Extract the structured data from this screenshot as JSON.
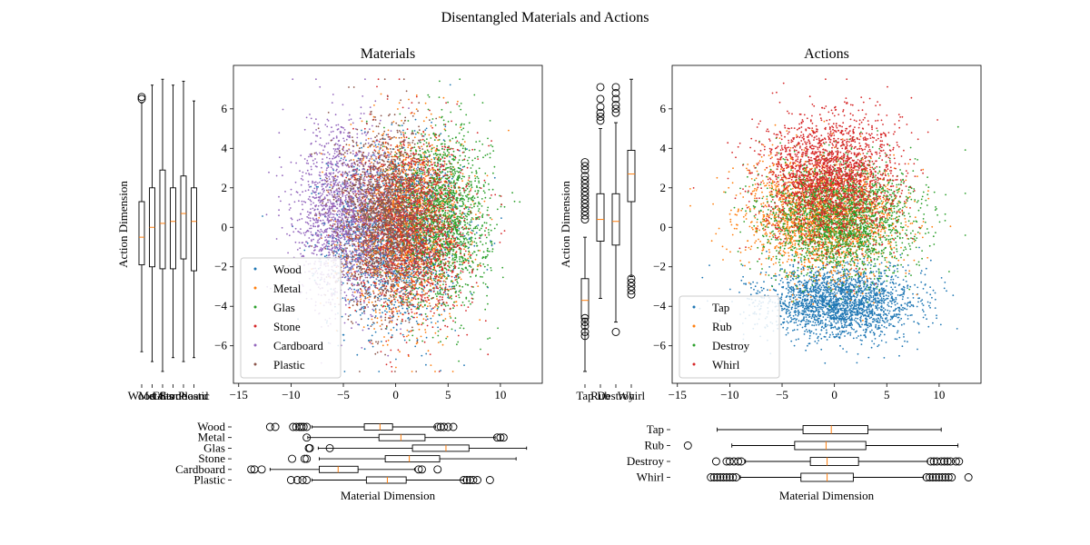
{
  "title": "Disentangled Materials and Actions",
  "colors": {
    "c0": "#1f77b4",
    "c1": "#ff7f0e",
    "c2": "#2ca02c",
    "c3": "#d62728",
    "c4": "#9467bd",
    "c5": "#8c564b",
    "median": "#ff7f0e",
    "axis": "#000000"
  },
  "chart_data": [
    {
      "id": "materials-scatter",
      "type": "scatter",
      "title": "Materials",
      "xlabel": "",
      "ylabel": "",
      "xlim": [
        -15.5,
        14
      ],
      "ylim": [
        -7.9,
        8.2
      ],
      "xticks": [
        -15,
        -10,
        -5,
        0,
        5,
        10
      ],
      "yticks": [
        -6,
        -4,
        -2,
        0,
        2,
        4,
        6
      ],
      "legend": "lower-left",
      "series": [
        {
          "name": "Wood",
          "color": "c0",
          "x_center": 0.0,
          "x_spread": 3.5,
          "y_center": -0.5,
          "y_spread": 2.5
        },
        {
          "name": "Metal",
          "color": "c1",
          "x_center": 1.0,
          "x_spread": 3.0,
          "y_center": 0.0,
          "y_spread": 2.5
        },
        {
          "name": "Glas",
          "color": "c2",
          "x_center": 4.5,
          "x_spread": 2.5,
          "y_center": 0.5,
          "y_spread": 2.5
        },
        {
          "name": "Stone",
          "color": "c3",
          "x_center": 1.5,
          "x_spread": 3.0,
          "y_center": 0.0,
          "y_spread": 2.5
        },
        {
          "name": "Cardboard",
          "color": "c4",
          "x_center": -5.0,
          "x_spread": 2.5,
          "y_center": 0.5,
          "y_spread": 2.5
        },
        {
          "name": "Plastic",
          "color": "c5",
          "x_center": -1.0,
          "x_spread": 2.5,
          "y_center": 0.5,
          "y_spread": 2.5
        }
      ]
    },
    {
      "id": "actions-scatter",
      "type": "scatter",
      "title": "Actions",
      "xlabel": "",
      "ylabel": "",
      "xlim": [
        -15.5,
        14
      ],
      "ylim": [
        -7.9,
        8.2
      ],
      "xticks": [
        -15,
        -10,
        -5,
        0,
        5,
        10
      ],
      "yticks": [
        -6,
        -4,
        -2,
        0,
        2,
        4,
        6
      ],
      "legend": "lower-left",
      "series": [
        {
          "name": "Tap",
          "color": "c0",
          "x_center": 0.5,
          "x_spread": 4.0,
          "y_center": -3.8,
          "y_spread": 1.0
        },
        {
          "name": "Rub",
          "color": "c1",
          "x_center": -1.0,
          "x_spread": 4.0,
          "y_center": 0.5,
          "y_spread": 1.6
        },
        {
          "name": "Destroy",
          "color": "c2",
          "x_center": 0.5,
          "x_spread": 4.0,
          "y_center": 0.5,
          "y_spread": 1.6
        },
        {
          "name": "Whirl",
          "color": "c3",
          "x_center": -0.5,
          "x_spread": 3.5,
          "y_center": 2.5,
          "y_spread": 1.8
        }
      ]
    },
    {
      "id": "materials-action-box",
      "type": "box",
      "orientation": "vertical",
      "ylabel": "Action Dimension",
      "ylim": [
        -7.9,
        8.2
      ],
      "categories": [
        "Wood",
        "Metal",
        "Glas",
        "Stone",
        "Cardboard",
        "Plastic"
      ],
      "boxes": [
        {
          "whislo": -6.3,
          "q1": -1.9,
          "med": -0.5,
          "q3": 1.3,
          "whishi": 6.3,
          "fliers": [
            6.5,
            6.6
          ]
        },
        {
          "whislo": -6.8,
          "q1": -2.0,
          "med": 0.0,
          "q3": 2.0,
          "whishi": 7.2,
          "fliers": []
        },
        {
          "whislo": -7.3,
          "q1": -2.1,
          "med": 0.2,
          "q3": 2.9,
          "whishi": 7.5,
          "fliers": []
        },
        {
          "whislo": -6.6,
          "q1": -2.1,
          "med": 0.3,
          "q3": 2.0,
          "whishi": 7.2,
          "fliers": []
        },
        {
          "whislo": -6.8,
          "q1": -1.6,
          "med": 0.7,
          "q3": 2.6,
          "whishi": 7.4,
          "fliers": []
        },
        {
          "whislo": -6.6,
          "q1": -2.2,
          "med": 0.3,
          "q3": 2.0,
          "whishi": 6.4,
          "fliers": []
        }
      ]
    },
    {
      "id": "actions-action-box",
      "type": "box",
      "orientation": "vertical",
      "ylabel": "Action Dimension",
      "ylim": [
        -7.9,
        8.2
      ],
      "categories": [
        "Tap",
        "Rub",
        "Destroy",
        "Whirl"
      ],
      "boxes": [
        {
          "whislo": -7.3,
          "q1": -4.6,
          "med": -3.7,
          "q3": -2.6,
          "whishi": -0.5,
          "fliers": [
            3.3,
            3.1,
            2.9,
            2.6,
            2.4,
            2.2,
            2.0,
            1.8,
            1.6,
            1.4,
            1.2,
            1.0,
            0.8,
            0.6,
            0.4,
            -4.6,
            -4.8,
            -5.0,
            -5.3,
            -5.5
          ]
        },
        {
          "whislo": -3.6,
          "q1": -0.7,
          "med": 0.4,
          "q3": 1.7,
          "whishi": 5.0,
          "fliers": [
            5.4,
            5.6,
            5.8,
            6.1,
            6.5,
            7.1
          ]
        },
        {
          "whislo": -4.8,
          "q1": -0.9,
          "med": 0.3,
          "q3": 1.7,
          "whishi": 5.3,
          "fliers": [
            5.8,
            6.0,
            6.2,
            6.5,
            6.8,
            7.1,
            -5.3
          ]
        },
        {
          "whislo": -2.5,
          "q1": 1.3,
          "med": 2.7,
          "q3": 3.9,
          "whishi": 7.5,
          "fliers": [
            -2.6,
            -2.8,
            -3.0,
            -3.2,
            -3.4
          ]
        }
      ]
    },
    {
      "id": "materials-material-box",
      "type": "box",
      "orientation": "horizontal",
      "xlabel": "Material Dimension",
      "xlim": [
        -15.5,
        14
      ],
      "categories": [
        "Wood",
        "Metal",
        "Glas",
        "Stone",
        "Cardboard",
        "Plastic"
      ],
      "boxes": [
        {
          "whislo": -8.0,
          "q1": -3.0,
          "med": -1.5,
          "q3": -0.3,
          "whishi": 3.8,
          "fliers": [
            -12.0,
            -11.5,
            -9.8,
            -9.5,
            -9.2,
            -9.0,
            -8.8,
            -8.5,
            4.0,
            4.3,
            4.6,
            5.0,
            5.5
          ]
        },
        {
          "whislo": -8.4,
          "q1": -1.6,
          "med": 0.5,
          "q3": 2.8,
          "whishi": 9.5,
          "fliers": [
            -8.5,
            9.7,
            10.0,
            10.3
          ]
        },
        {
          "whislo": -7.4,
          "q1": 1.6,
          "med": 4.8,
          "q3": 7.0,
          "whishi": 12.5,
          "fliers": [
            -8.3,
            -8.2,
            -6.3
          ]
        },
        {
          "whislo": -7.3,
          "q1": -1.0,
          "med": 1.3,
          "q3": 4.2,
          "whishi": 11.5,
          "fliers": [
            -9.9,
            -8.7,
            -8.5
          ]
        },
        {
          "whislo": -12.0,
          "q1": -7.3,
          "med": -5.5,
          "q3": -3.6,
          "whishi": 1.8,
          "fliers": [
            -13.8,
            -13.5,
            -12.8,
            2.2,
            2.5,
            4.0
          ]
        },
        {
          "whislo": -8.0,
          "q1": -2.8,
          "med": -0.8,
          "q3": 1.0,
          "whishi": 6.5,
          "fliers": [
            -10.0,
            -9.4,
            -8.9,
            -8.5,
            6.5,
            6.8,
            7.1,
            7.4,
            7.8,
            9.0
          ]
        }
      ]
    },
    {
      "id": "actions-material-box",
      "type": "box",
      "orientation": "horizontal",
      "xlabel": "Material Dimension",
      "xlim": [
        -15.5,
        14
      ],
      "categories": [
        "Tap",
        "Rub",
        "Destroy",
        "Whirl"
      ],
      "boxes": [
        {
          "whislo": -11.2,
          "q1": -3.0,
          "med": -0.3,
          "q3": 3.2,
          "whishi": 10.2,
          "fliers": []
        },
        {
          "whislo": -9.8,
          "q1": -3.8,
          "med": -0.8,
          "q3": 3.0,
          "whishi": 11.8,
          "fliers": [
            -14.0
          ]
        },
        {
          "whislo": -8.5,
          "q1": -2.3,
          "med": -0.7,
          "q3": 2.3,
          "whishi": 8.9,
          "fliers": [
            -11.3,
            -10.3,
            -10.0,
            -9.6,
            -9.2,
            -8.9,
            9.2,
            9.5,
            9.8,
            10.2,
            10.5,
            10.8,
            11.1,
            11.6,
            11.9
          ]
        },
        {
          "whislo": -9.0,
          "q1": -3.2,
          "med": -0.7,
          "q3": 1.8,
          "whishi": 8.5,
          "fliers": [
            -11.8,
            -11.5,
            -11.2,
            -10.9,
            -10.6,
            -10.3,
            -10.0,
            -9.7,
            -9.4,
            8.8,
            9.1,
            9.4,
            9.7,
            10.0,
            10.3,
            10.6,
            10.9,
            11.2,
            12.8
          ]
        }
      ]
    }
  ]
}
